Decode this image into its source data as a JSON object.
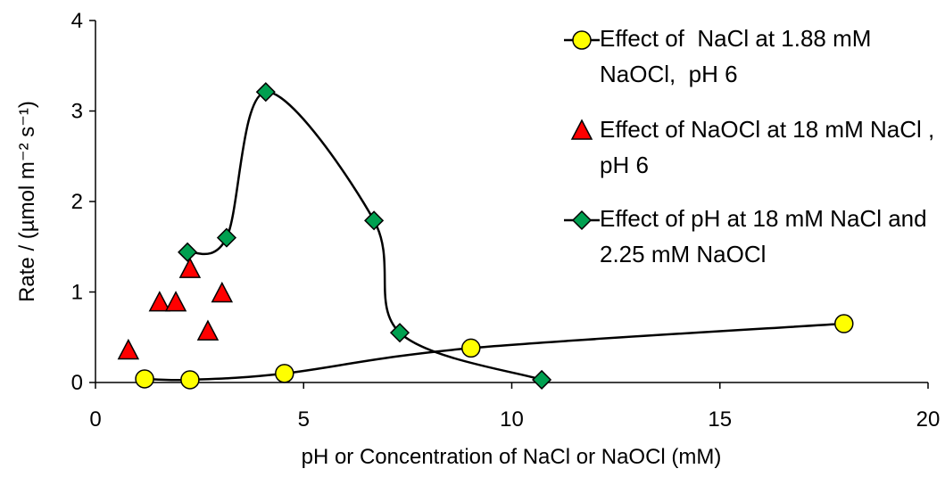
{
  "chart_data": {
    "type": "scatter",
    "xlabel": "pH or Concentration of NaCl or NaOCl (mM)",
    "ylabel": "Rate / (µmol m⁻² s⁻¹)",
    "xlim": [
      0,
      20
    ],
    "xticks": [
      0,
      5,
      10,
      15,
      20
    ],
    "ylim": [
      0,
      4
    ],
    "yticks": [
      0,
      1,
      2,
      3,
      4
    ],
    "series": [
      {
        "name": "Effect of  NaCl at 1.88 mM NaOCl,  pH 6",
        "color": "#ffff00",
        "marker": "circle",
        "line": true,
        "x": [
          1.18,
          2.27,
          4.54,
          9.02,
          17.98
        ],
        "values": [
          0.04,
          0.03,
          0.1,
          0.38,
          0.65
        ]
      },
      {
        "name": "Effect of NaOCl at 18 mM NaCl , pH 6",
        "color": "#ff0000",
        "marker": "triangle",
        "line": false,
        "x": [
          0.79,
          1.54,
          1.93,
          2.27,
          2.7,
          3.04
        ],
        "values": [
          0.35,
          0.88,
          0.88,
          1.25,
          0.56,
          0.98
        ]
      },
      {
        "name": "Effect of pH at 18 mM NaCl and 2.25 mM NaOCl",
        "color": "#00a050",
        "marker": "diamond",
        "line": true,
        "x": [
          2.21,
          3.15,
          4.09,
          6.69,
          7.31,
          10.72
        ],
        "values": [
          1.44,
          1.6,
          3.21,
          1.79,
          0.55,
          0.03
        ]
      }
    ]
  }
}
